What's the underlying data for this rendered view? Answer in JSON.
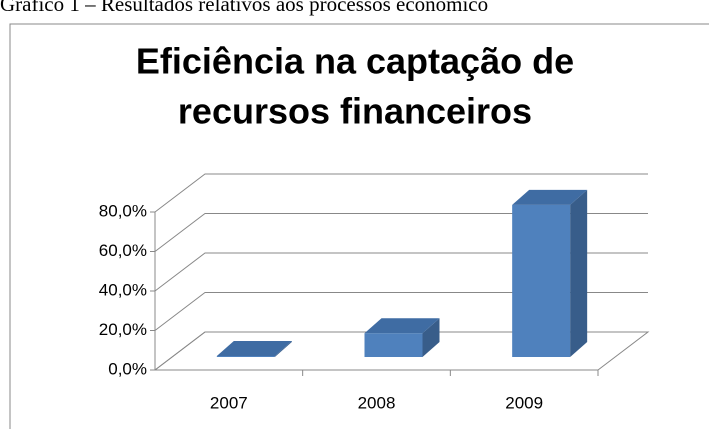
{
  "caption": "Gráfico 1 – Resultados relativos aos processos económico",
  "chart_data": {
    "type": "bar3d",
    "title": [
      "Eficiência na captação de",
      "recursos financeiros"
    ],
    "categories": [
      "2007",
      "2008",
      "2009"
    ],
    "values": [
      0.5,
      12,
      77
    ],
    "color": "#4f81bd",
    "ylim": [
      0,
      80
    ],
    "yticks": [
      {
        "value": 0,
        "label": "0,0%"
      },
      {
        "value": 20,
        "label": "20,0%"
      },
      {
        "value": 40,
        "label": "40,0%"
      },
      {
        "value": 60,
        "label": "60,0%"
      },
      {
        "value": 80,
        "label": "80,0%"
      }
    ],
    "grid": true
  }
}
